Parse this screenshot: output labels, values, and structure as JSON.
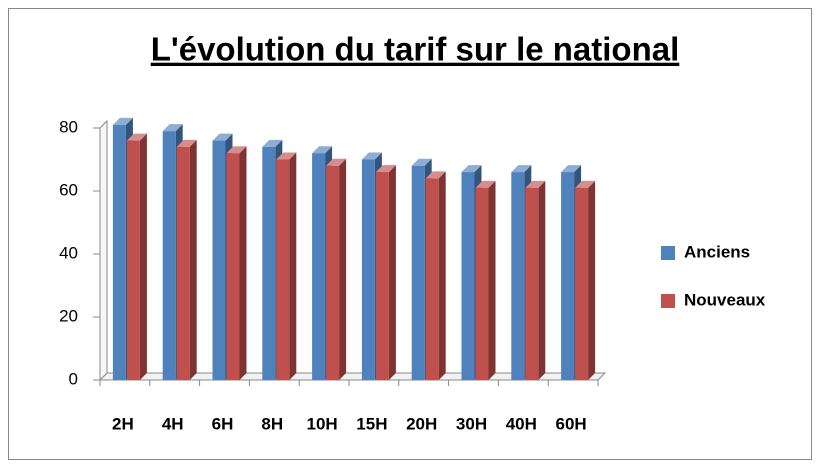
{
  "chart_data": {
    "type": "bar",
    "title": "L'évolution du tarif sur le national",
    "categories": [
      "2H",
      "4H",
      "6H",
      "8H",
      "10H",
      "15H",
      "20H",
      "30H",
      "40H",
      "60H"
    ],
    "series": [
      {
        "name": "Anciens",
        "color": "#4f81bd",
        "values": [
          81,
          79,
          76,
          74,
          72,
          70,
          68,
          66,
          66,
          66
        ]
      },
      {
        "name": "Nouveaux",
        "color": "#c0504d",
        "values": [
          76,
          74,
          72,
          70,
          68,
          66,
          64,
          61,
          61,
          61
        ]
      }
    ],
    "ylim": [
      0,
      80
    ],
    "yticks": [
      0,
      20,
      40,
      60,
      80
    ],
    "legend": "right"
  }
}
